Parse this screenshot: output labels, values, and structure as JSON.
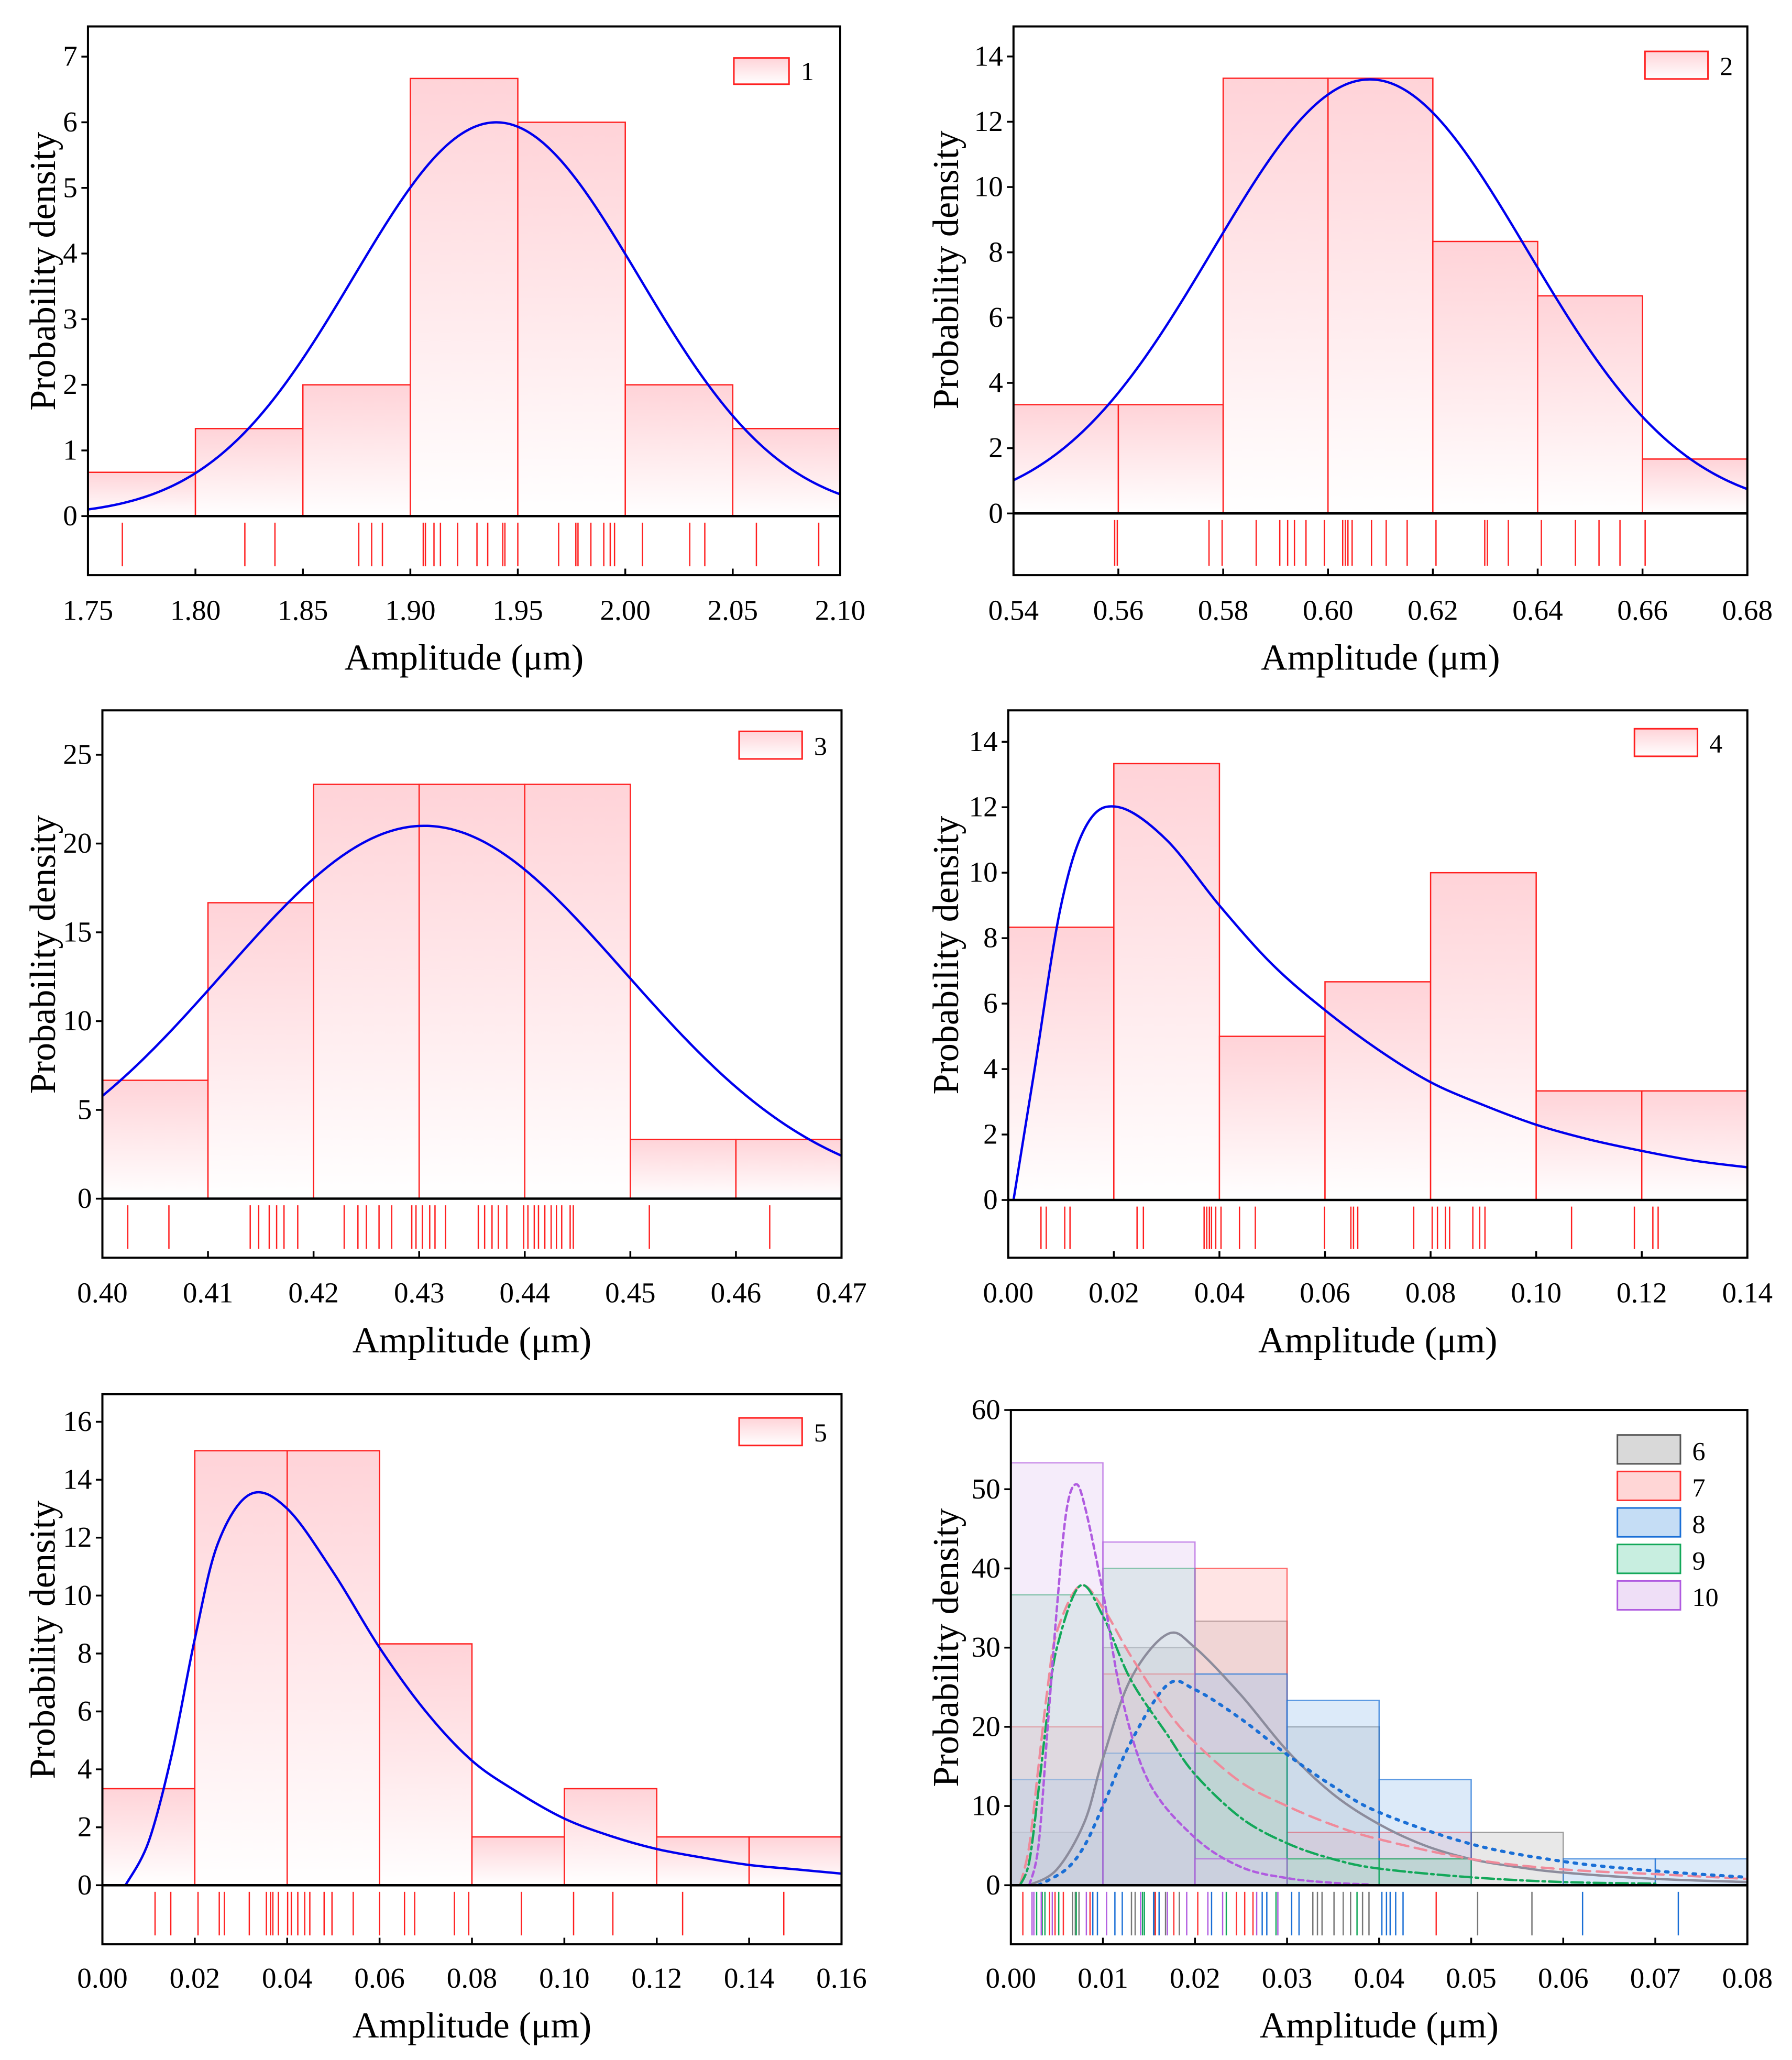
{
  "chart_data": [
    {
      "id": "1",
      "type": "bar",
      "title": "",
      "xlabel": "Amplitude (μm)",
      "ylabel": "Probability density",
      "xlim": [
        1.75,
        2.1
      ],
      "ylim": [
        0,
        7.46
      ],
      "x_ticks": [
        "1.75",
        "1.80",
        "1.85",
        "1.90",
        "1.95",
        "2.00",
        "2.05",
        "2.10"
      ],
      "y_ticks": [
        "0",
        "1",
        "2",
        "3",
        "4",
        "5",
        "6",
        "7"
      ],
      "legend": [
        {
          "label": "1",
          "fill": "#ffd3d8",
          "stroke": "#ff2020"
        }
      ],
      "legend_position": "top-right",
      "series": [
        {
          "name": "1",
          "color": "#ff2020",
          "bin_start": 1.75,
          "bin_width": 0.05,
          "values": [
            0.667,
            1.333,
            2,
            6.667,
            6,
            2,
            1.333
          ],
          "fit": {
            "type": "normal",
            "mean": 1.94,
            "sd": 0.0665,
            "color": "#0000ee"
          },
          "rug": [
            1.766,
            1.823,
            1.837,
            1.876,
            1.882,
            1.887,
            1.906,
            1.907,
            1.911,
            1.914,
            1.922,
            1.931,
            1.936,
            1.943,
            1.944,
            1.95,
            1.969,
            1.977,
            1.978,
            1.984,
            1.99,
            1.993,
            1.995,
            2.008,
            2.03,
            2.037,
            2.061,
            2.09
          ]
        }
      ]
    },
    {
      "id": "2",
      "type": "bar",
      "title": "",
      "xlabel": "Amplitude (μm)",
      "ylabel": "Probability density",
      "xlim": [
        0.54,
        0.68
      ],
      "ylim": [
        0,
        14.92
      ],
      "x_ticks": [
        "0.54",
        "0.56",
        "0.58",
        "0.60",
        "0.62",
        "0.64",
        "0.66",
        "0.68"
      ],
      "y_ticks": [
        "0",
        "2",
        "4",
        "6",
        "8",
        "10",
        "12",
        "14"
      ],
      "legend": [
        {
          "label": "2",
          "fill": "#ffd3d8",
          "stroke": "#ff2020"
        }
      ],
      "legend_position": "top-right",
      "series": [
        {
          "name": "2",
          "color": "#ff2020",
          "bin_start": 0.54,
          "bin_width": 0.02,
          "values": [
            3.333,
            3.333,
            13.333,
            13.333,
            8.333,
            6.667,
            1.667
          ],
          "fit": {
            "type": "normal",
            "mean": 0.608,
            "sd": 0.03,
            "color": "#0000ee"
          },
          "rug": [
            0.5593,
            0.5598,
            0.5773,
            0.5798,
            0.5863,
            0.5908,
            0.5923,
            0.5936,
            0.5958,
            0.5993,
            0.6028,
            0.6033,
            0.6038,
            0.6046,
            0.6083,
            0.6111,
            0.6151,
            0.6206,
            0.6299,
            0.6304,
            0.6344,
            0.6407,
            0.6472,
            0.6517,
            0.6557,
            0.6605
          ]
        }
      ]
    },
    {
      "id": "3",
      "type": "bar",
      "title": "",
      "xlabel": "Amplitude (μm)",
      "ylabel": "Probability density",
      "xlim": [
        0.4,
        0.47
      ],
      "ylim": [
        0,
        27.5
      ],
      "x_ticks": [
        "0.40",
        "0.41",
        "0.42",
        "0.43",
        "0.44",
        "0.45",
        "0.46",
        "0.47"
      ],
      "y_ticks": [
        "0",
        "5",
        "10",
        "15",
        "20",
        "25"
      ],
      "legend": [
        {
          "label": "3",
          "fill": "#ffd3d8",
          "stroke": "#ff2020"
        }
      ],
      "legend_position": "top-right",
      "series": [
        {
          "name": "3",
          "color": "#ff2020",
          "bin_start": 0.4,
          "bin_width": 0.01,
          "values": [
            6.667,
            16.667,
            23.333,
            23.333,
            23.333,
            3.333,
            3.333
          ],
          "fit": {
            "type": "normal",
            "mean": 0.4305,
            "sd": 0.019,
            "color": "#0000ee"
          },
          "rug": [
            0.4024,
            0.4063,
            0.414,
            0.4148,
            0.4158,
            0.4165,
            0.4172,
            0.4185,
            0.4229,
            0.4242,
            0.425,
            0.4262,
            0.4274,
            0.4293,
            0.4297,
            0.4303,
            0.431,
            0.4315,
            0.4325,
            0.4356,
            0.4362,
            0.4369,
            0.4375,
            0.4383,
            0.4399,
            0.4403,
            0.4409,
            0.4413,
            0.4419,
            0.4425,
            0.443,
            0.4435,
            0.4443,
            0.4446,
            0.4518,
            0.4632
          ]
        }
      ]
    },
    {
      "id": "4",
      "type": "bar",
      "title": "",
      "xlabel": "Amplitude (μm)",
      "ylabel": "Probability density",
      "xlim": [
        0,
        0.14
      ],
      "ylim": [
        0,
        14.96
      ],
      "x_ticks": [
        "0.00",
        "0.02",
        "0.04",
        "0.06",
        "0.08",
        "0.10",
        "0.12",
        "0.14"
      ],
      "y_ticks": [
        "0",
        "2",
        "4",
        "6",
        "8",
        "10",
        "12",
        "14"
      ],
      "legend": [
        {
          "label": "4",
          "fill": "#ffd3d8",
          "stroke": "#ff2020"
        }
      ],
      "legend_position": "top-right",
      "series": [
        {
          "name": "4",
          "color": "#ff2020",
          "bin_start": 0,
          "bin_width": 0.02,
          "values": [
            8.333,
            13.333,
            5,
            6.667,
            10,
            3.333,
            3.333
          ],
          "fit": {
            "type": "points",
            "color": "#0000ee",
            "x": [
              0.001,
              0.005,
              0.01,
              0.015,
              0.021,
              0.03,
              0.04,
              0.05,
              0.06,
              0.07,
              0.08,
              0.09,
              0.1,
              0.11,
              0.12,
              0.13,
              0.14
            ],
            "y": [
              0,
              4,
              9,
              11.5,
              12,
              11,
              9,
              7.2,
              5.8,
              4.6,
              3.6,
              2.9,
              2.3,
              1.85,
              1.5,
              1.2,
              1.0
            ]
          },
          "rug": [
            0.0062,
            0.0072,
            0.0107,
            0.0117,
            0.0244,
            0.0256,
            0.0371,
            0.0376,
            0.0381,
            0.0385,
            0.0393,
            0.0403,
            0.0438,
            0.0468,
            0.0599,
            0.0649,
            0.0654,
            0.0662,
            0.0768,
            0.0803,
            0.0813,
            0.0828,
            0.0836,
            0.088,
            0.0893,
            0.0903,
            0.1067,
            0.1186,
            0.1221,
            0.1231
          ]
        }
      ]
    },
    {
      "id": "5",
      "type": "bar",
      "title": "",
      "xlabel": "Amplitude (μm)",
      "ylabel": "Probability density",
      "xlim": [
        0,
        0.16
      ],
      "ylim": [
        0,
        16.95
      ],
      "x_ticks": [
        "0.00",
        "0.02",
        "0.04",
        "0.06",
        "0.08",
        "0.10",
        "0.12",
        "0.14",
        "0.16"
      ],
      "y_ticks": [
        "0",
        "2",
        "4",
        "6",
        "8",
        "10",
        "12",
        "14",
        "16"
      ],
      "legend": [
        {
          "label": "5",
          "fill": "#ffd3d8",
          "stroke": "#ff2020"
        }
      ],
      "legend_position": "top-right",
      "series": [
        {
          "name": "5",
          "color": "#ff2020",
          "bin_start": 0,
          "bin_width": 0.02,
          "values": [
            3.333,
            15,
            15,
            8.333,
            1.667,
            3.333,
            1.667,
            1.667
          ],
          "fit": {
            "type": "points",
            "color": "#0000ee",
            "x": [
              0.005,
              0.01,
              0.015,
              0.02,
              0.025,
              0.032,
              0.04,
              0.05,
              0.06,
              0.07,
              0.08,
              0.09,
              0.1,
              0.11,
              0.12,
              0.13,
              0.14,
              0.15,
              0.16
            ],
            "y": [
              0,
              1.5,
              4.5,
              8.5,
              11.8,
              13.5,
              13,
              10.8,
              8.2,
              6,
              4.3,
              3.2,
              2.3,
              1.7,
              1.25,
              0.95,
              0.7,
              0.55,
              0.4
            ]
          },
          "rug": [
            0.0114,
            0.0148,
            0.0207,
            0.0253,
            0.0264,
            0.0318,
            0.0355,
            0.0364,
            0.0369,
            0.0381,
            0.0401,
            0.0409,
            0.0423,
            0.0438,
            0.0449,
            0.048,
            0.0497,
            0.0543,
            0.06,
            0.0654,
            0.0676,
            0.0762,
            0.0793,
            0.0907,
            0.102,
            0.1105,
            0.1256,
            0.1475
          ]
        }
      ]
    },
    {
      "id": "6",
      "type": "bar",
      "title": "",
      "xlabel": "Amplitude (μm)",
      "ylabel": "Probability density",
      "xlim": [
        0,
        0.08
      ],
      "ylim": [
        0,
        60
      ],
      "x_ticks": [
        "0.00",
        "0.01",
        "0.02",
        "0.03",
        "0.04",
        "0.05",
        "0.06",
        "0.07",
        "0.08"
      ],
      "y_ticks": [
        "0",
        "10",
        "20",
        "30",
        "40",
        "50",
        "60"
      ],
      "legend": [
        {
          "label": "6",
          "fill": "#d9d9d9",
          "stroke": "#555555"
        },
        {
          "label": "7",
          "fill": "#ffd6d6",
          "stroke": "#ff3333"
        },
        {
          "label": "8",
          "fill": "#c5ddf5",
          "stroke": "#1a6fd6"
        },
        {
          "label": "9",
          "fill": "#c8eee0",
          "stroke": "#13a85a"
        },
        {
          "label": "10",
          "fill": "#efdff7",
          "stroke": "#b05be0"
        }
      ],
      "legend_position": "top-right",
      "series": [
        {
          "name": "6",
          "color": "#777777",
          "fill": "#bdbdbd",
          "bin_start": 0,
          "bin_width": 0.01,
          "values": [
            6.667,
            30,
            33.333,
            20,
            3.333,
            6.667
          ],
          "fit": {
            "type": "points",
            "style": "solid",
            "color": "#8c8c9c",
            "x": [
              0.002,
              0.005,
              0.008,
              0.01,
              0.013,
              0.017,
              0.02,
              0.025,
              0.03,
              0.035,
              0.04,
              0.045,
              0.05,
              0.055,
              0.06,
              0.07,
              0.08
            ],
            "y": [
              0,
              2,
              8,
              16,
              26,
              31.7,
              30,
              24,
              17,
              11.5,
              7.7,
              5,
              3.3,
              2.3,
              1.6,
              0.8,
              0.4
            ]
          },
          "rug": [
            0.0067,
            0.007,
            0.0074,
            0.0131,
            0.0135,
            0.0156,
            0.0168,
            0.0183,
            0.0328,
            0.0333,
            0.0338,
            0.0351,
            0.0361,
            0.0369,
            0.0382,
            0.0389,
            0.0507,
            0.0566
          ]
        },
        {
          "name": "7",
          "color": "#ff3333",
          "fill": "#ffb3b3",
          "bin_start": 0,
          "bin_width": 0.01,
          "values": [
            20,
            26.667,
            40,
            6.667,
            6.667
          ],
          "fit": {
            "type": "points",
            "style": "dashed",
            "color": "#f08a9a",
            "x": [
              0.001,
              0.002,
              0.003,
              0.004,
              0.005,
              0.0075,
              0.01,
              0.013,
              0.017,
              0.02,
              0.025,
              0.03,
              0.035,
              0.04,
              0.05,
              0.06,
              0.07,
              0.08
            ],
            "y": [
              0,
              5,
              15,
              25,
              32,
              37.8,
              35,
              29,
              22,
              18,
              13,
              10,
              7.6,
              5.8,
              3.3,
              2,
              1.4,
              0.8
            ]
          },
          "rug": [
            0.0013,
            0.0042,
            0.0048,
            0.0057,
            0.0086,
            0.0157,
            0.0177,
            0.0203,
            0.0245,
            0.0254,
            0.0263,
            0.0462
          ]
        },
        {
          "name": "8",
          "color": "#1a6fd6",
          "fill": "#9cc4ee",
          "bin_start": 0,
          "bin_width": 0.01,
          "values": [
            13.333,
            16.667,
            26.667,
            23.333,
            13.333,
            0,
            3.333,
            3.333
          ],
          "fit": {
            "type": "points",
            "style": "dotted",
            "color": "#1a6fd6",
            "x": [
              0.003,
              0.006,
              0.008,
              0.01,
              0.013,
              0.017,
              0.02,
              0.025,
              0.03,
              0.035,
              0.04,
              0.05,
              0.06,
              0.07,
              0.08
            ],
            "y": [
              0,
              2,
              5,
              10,
              18,
              25.3,
              24.7,
              21,
              16.5,
              12.5,
              9.2,
              5.2,
              3,
              1.8,
              1
            ]
          },
          "rug": [
            0.0089,
            0.0094,
            0.0113,
            0.0121,
            0.0155,
            0.0161,
            0.0218,
            0.0273,
            0.0278,
            0.0305,
            0.0313,
            0.0403,
            0.0408,
            0.0412,
            0.0418,
            0.0426,
            0.0621,
            0.0725
          ]
        },
        {
          "name": "9",
          "color": "#13a85a",
          "fill": "#9fe0c4",
          "bin_start": 0,
          "bin_width": 0.01,
          "values": [
            36.667,
            40,
            16.667,
            3.333,
            3.333
          ],
          "fit": {
            "type": "points",
            "style": "dashdot",
            "color": "#13a85a",
            "x": [
              0.001,
              0.002,
              0.003,
              0.004,
              0.005,
              0.0075,
              0.01,
              0.013,
              0.017,
              0.02,
              0.025,
              0.03,
              0.035,
              0.04,
              0.05,
              0.06,
              0.07
            ],
            "y": [
              0,
              3,
              12,
              22,
              30,
              37.8,
              34,
              26,
              19,
              14,
              8.5,
              5.3,
              3.3,
              2.1,
              1,
              0.4,
              0.2
            ]
          },
          "rug": [
            0.0028,
            0.0034,
            0.0037,
            0.0052,
            0.0071,
            0.0143,
            0.0145,
            0.0234,
            0.0288,
            0.0376
          ]
        },
        {
          "name": "10",
          "color": "#b05be0",
          "fill": "#e3c9f2",
          "bin_start": 0,
          "bin_width": 0.01,
          "values": [
            53.333,
            43.333,
            3.333
          ],
          "fit": {
            "type": "points",
            "style": "shortdash",
            "color": "#b05be0",
            "x": [
              0.002,
              0.003,
              0.004,
              0.005,
              0.006,
              0.007,
              0.008,
              0.01,
              0.012,
              0.015,
              0.02,
              0.025,
              0.03,
              0.035,
              0.039
            ],
            "y": [
              0,
              5,
              20,
              35,
              47,
              50.6,
              48,
              37,
              24,
              13,
              6,
              2.3,
              0.9,
              0.3,
              0.1
            ]
          },
          "rug": [
            0.0023,
            0.0025,
            0.0033,
            0.0045,
            0.0082,
            0.0104,
            0.0141,
            0.017,
            0.0191,
            0.0214,
            0.023,
            0.0267,
            0.029
          ]
        }
      ]
    }
  ]
}
